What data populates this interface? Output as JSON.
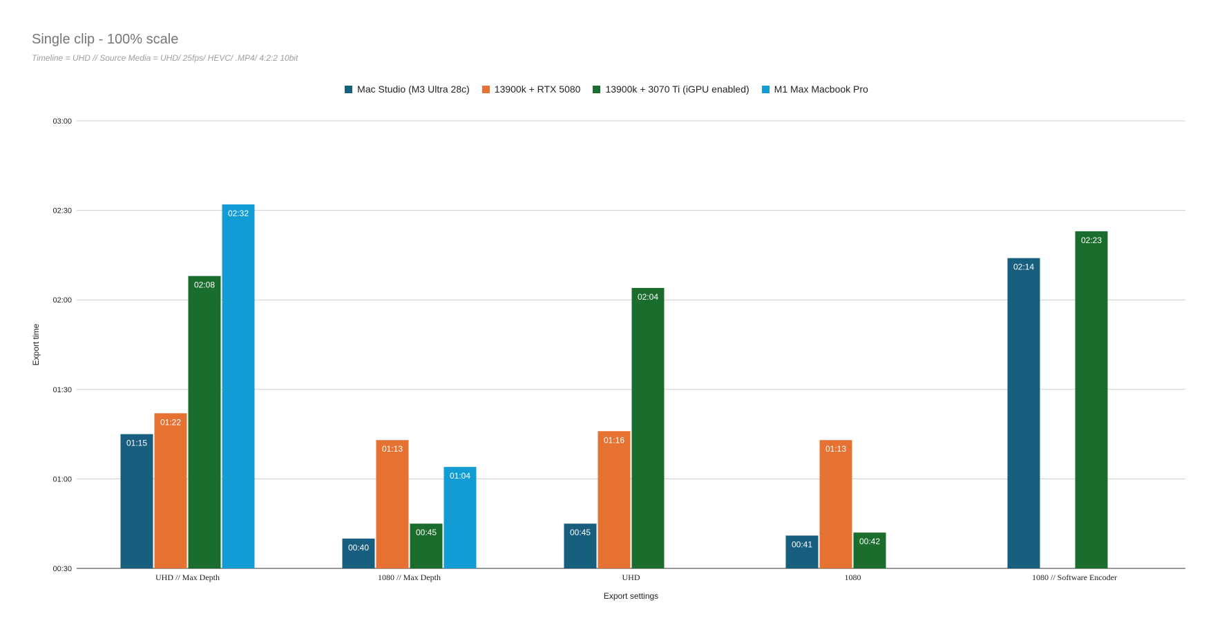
{
  "chart_data": {
    "type": "bar",
    "title": "Single clip - 100% scale",
    "subtitle": "Timeline = UHD // Source Media = UHD/ 25fps/ HEVC/ .MP4/ 4:2:2 10bit",
    "xlabel": "Export settings",
    "ylabel": "Export time",
    "categories": [
      "UHD // Max Depth",
      "1080 // Max Depth",
      "UHD",
      "1080",
      "1080 // Software Encoder"
    ],
    "y_ticks": [
      "00:30",
      "01:00",
      "01:30",
      "02:00",
      "02:30",
      "03:00"
    ],
    "ylim_seconds": [
      30,
      180
    ],
    "grid": true,
    "legend_position": "top",
    "series": [
      {
        "name": "Mac Studio (M3 Ultra 28c)",
        "color": "#175e7f",
        "values": [
          75,
          40,
          45,
          41,
          134
        ],
        "labels": [
          "01:15",
          "00:40",
          "00:45",
          "00:41",
          "02:14"
        ]
      },
      {
        "name": "13900k + RTX 5080",
        "color": "#e57232",
        "values": [
          82,
          73,
          76,
          73,
          null
        ],
        "labels": [
          "01:22",
          "01:13",
          "01:16",
          "01:13",
          null
        ]
      },
      {
        "name": "13900k + 3070 Ti (iGPU enabled)",
        "color": "#1b6d2d",
        "values": [
          128,
          45,
          124,
          42,
          143
        ],
        "labels": [
          "02:08",
          "00:45",
          "02:04",
          "00:42",
          "02:23"
        ]
      },
      {
        "name": "M1 Max Macbook Pro",
        "color": "#119dd4",
        "values": [
          152,
          64,
          null,
          null,
          null
        ],
        "labels": [
          "02:32",
          "01:04",
          null,
          null,
          null
        ]
      }
    ]
  }
}
